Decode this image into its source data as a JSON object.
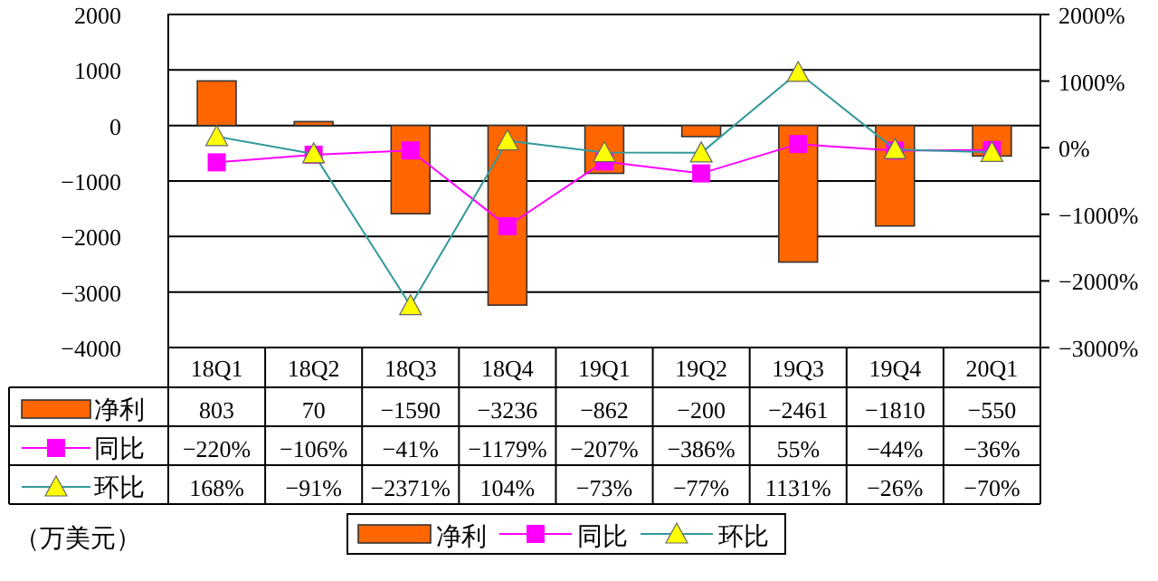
{
  "chart_data": {
    "type": "bar",
    "categories": [
      "18Q1",
      "18Q2",
      "18Q3",
      "18Q4",
      "19Q1",
      "19Q2",
      "19Q3",
      "19Q4",
      "20Q1"
    ],
    "series": [
      {
        "name": "净利",
        "color": "#ff6600",
        "values": [
          803,
          70,
          -1590,
          -3236,
          -862,
          -200,
          -2461,
          -1810,
          -550
        ],
        "value_labels": [
          "803",
          "70",
          "−1590",
          "−3236",
          "−862",
          "−200",
          "−2461",
          "−1810",
          "−550"
        ]
      },
      {
        "name": "同比",
        "type": "line",
        "axis": "y2",
        "color": "#ff00ff",
        "marker": "square",
        "values": [
          -220,
          -106,
          -41,
          -1179,
          -207,
          -386,
          55,
          -44,
          -36
        ],
        "value_labels": [
          "−220%",
          "−106%",
          "−41%",
          "−1179%",
          "−207%",
          "−386%",
          "55%",
          "−44%",
          "−36%"
        ]
      },
      {
        "name": "环比",
        "type": "line",
        "axis": "y2",
        "color": "#339999",
        "marker": "triangle",
        "values": [
          168,
          -91,
          -2371,
          104,
          -73,
          -77,
          1131,
          -26,
          -70
        ],
        "value_labels": [
          "168%",
          "−91%",
          "−2371%",
          "104%",
          "−73%",
          "−77%",
          "1131%",
          "−26%",
          "−70%"
        ]
      }
    ],
    "ylim": [
      -4000,
      2000
    ],
    "yticks": [
      {
        "value": -4000,
        "label": "−4000"
      },
      {
        "value": -3000,
        "label": "−3000"
      },
      {
        "value": -2000,
        "label": "−2000"
      },
      {
        "value": -1000,
        "label": "−1000"
      },
      0,
      1000,
      2000
    ],
    "y2lim": [
      -3000,
      2000
    ],
    "y2ticks": [
      {
        "value": -3000,
        "label": "−3000%"
      },
      {
        "value": -2000,
        "label": "−2000%"
      },
      {
        "value": -1000,
        "label": "−1000%"
      },
      {
        "value": 0,
        "label": "0%"
      },
      {
        "value": 1000,
        "label": "1000%"
      },
      {
        "value": 2000,
        "label": "2000%"
      }
    ],
    "grid": "y",
    "legend": "bottom",
    "annotations": [
      "（万美元）"
    ]
  }
}
